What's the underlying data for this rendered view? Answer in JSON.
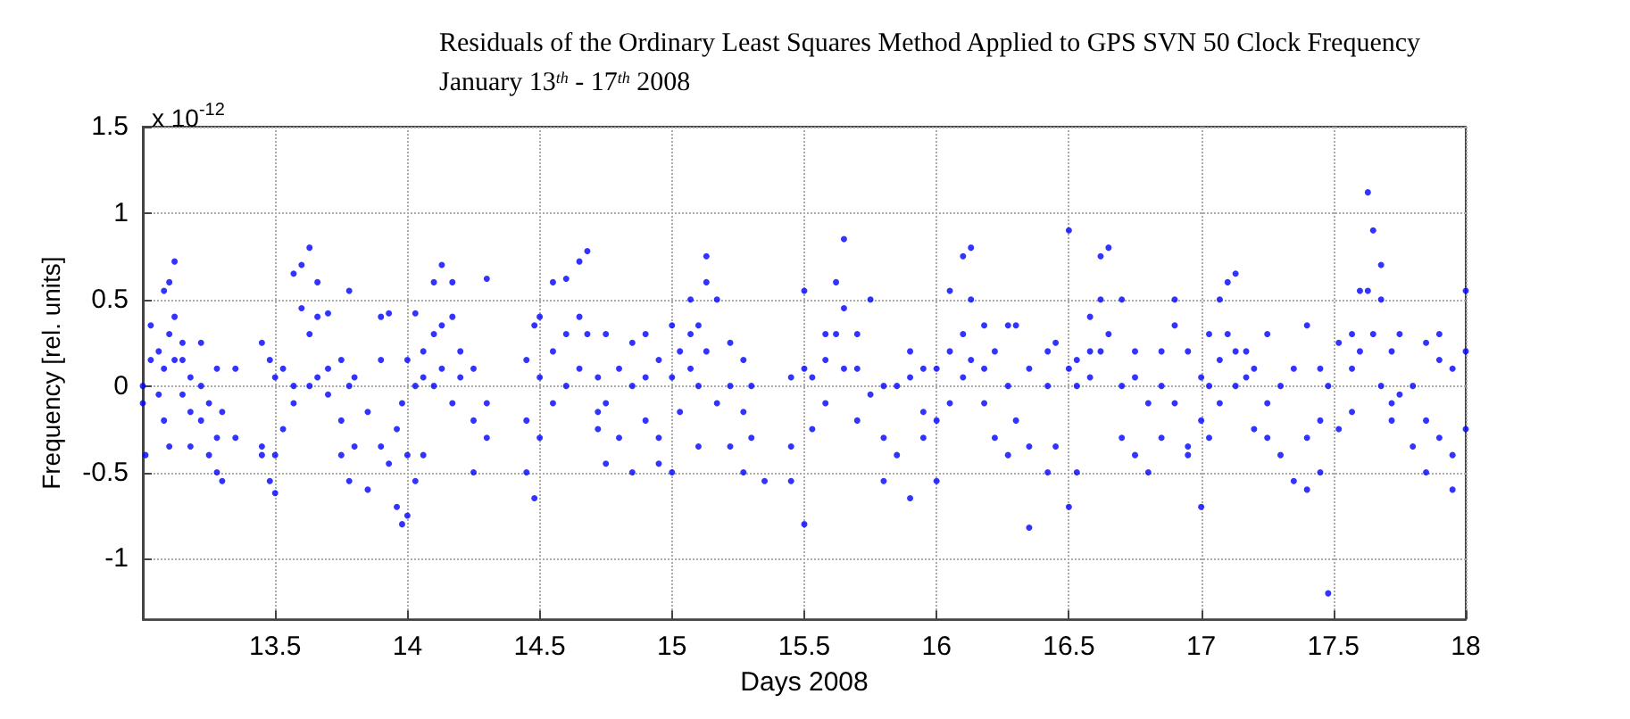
{
  "chart_data": {
    "type": "scatter",
    "title": "Residuals of the Ordinary Least Squares Method Applied to GPS SVN 50 Clock Frequency",
    "subtitle": "January 13$^{th}$ - 17$^{th}$ 2008",
    "xlabel": "Days 2008",
    "ylabel": "Frequency [rel. units]",
    "annotations": [
      "x 10$^{-12}$"
    ],
    "xlim": [
      13,
      18
    ],
    "xticks": [
      13.5,
      14,
      14.5,
      15,
      15.5,
      16,
      16.5,
      17,
      17.5,
      18
    ],
    "ylim": [
      -1.35,
      1.5
    ],
    "yticks": [
      -1,
      -0.5,
      0,
      0.5,
      1,
      1.5
    ],
    "grid": true,
    "marker": "circle",
    "series": [
      {
        "color": "#0000ff",
        "x": [
          13.0,
          13.0,
          13.01,
          13.03,
          13.03,
          13.06,
          13.06,
          13.08,
          13.08,
          13.08,
          13.1,
          13.1,
          13.1,
          13.12,
          13.12,
          13.12,
          13.15,
          13.15,
          13.15,
          13.18,
          13.18,
          13.18,
          13.22,
          13.22,
          13.22,
          13.25,
          13.25,
          13.28,
          13.28,
          13.28,
          13.3,
          13.3,
          13.35,
          13.35,
          13.45,
          13.45,
          13.45,
          13.48,
          13.48,
          13.5,
          13.5,
          13.5,
          13.53,
          13.53,
          13.57,
          13.57,
          13.57,
          13.6,
          13.6,
          13.63,
          13.63,
          13.63,
          13.66,
          13.66,
          13.66,
          13.7,
          13.7,
          13.7,
          13.75,
          13.75,
          13.75,
          13.78,
          13.78,
          13.78,
          13.8,
          13.8,
          13.85,
          13.85,
          13.9,
          13.9,
          13.9,
          13.93,
          13.93,
          13.96,
          13.96,
          13.98,
          13.98,
          14.0,
          14.0,
          14.0,
          14.03,
          14.03,
          14.03,
          14.06,
          14.06,
          14.06,
          14.1,
          14.1,
          14.1,
          14.13,
          14.13,
          14.13,
          14.17,
          14.17,
          14.17,
          14.2,
          14.2,
          14.25,
          14.25,
          14.25,
          14.3,
          14.3,
          14.3,
          14.45,
          14.45,
          14.45,
          14.48,
          14.48,
          14.5,
          14.5,
          14.5,
          14.55,
          14.55,
          14.55,
          14.6,
          14.6,
          14.6,
          14.65,
          14.65,
          14.65,
          14.68,
          14.68,
          14.72,
          14.72,
          14.72,
          14.75,
          14.75,
          14.75,
          14.8,
          14.8,
          14.85,
          14.85,
          14.85,
          14.9,
          14.9,
          14.9,
          14.95,
          14.95,
          14.95,
          15.0,
          15.0,
          15.0,
          15.03,
          15.03,
          15.07,
          15.07,
          15.07,
          15.1,
          15.1,
          15.1,
          15.13,
          15.13,
          15.13,
          15.17,
          15.17,
          15.22,
          15.22,
          15.22,
          15.27,
          15.27,
          15.27,
          15.3,
          15.3,
          15.35,
          15.45,
          15.45,
          15.45,
          15.5,
          15.5,
          15.5,
          15.53,
          15.53,
          15.58,
          15.58,
          15.58,
          15.62,
          15.62,
          15.65,
          15.65,
          15.65,
          15.7,
          15.7,
          15.7,
          15.75,
          15.75,
          15.8,
          15.8,
          15.8,
          15.85,
          15.85,
          15.9,
          15.9,
          15.9,
          15.95,
          15.95,
          15.95,
          16.0,
          16.0,
          16.0,
          16.05,
          16.05,
          16.05,
          16.1,
          16.1,
          16.1,
          16.13,
          16.13,
          16.13,
          16.18,
          16.18,
          16.18,
          16.22,
          16.22,
          16.27,
          16.27,
          16.27,
          16.3,
          16.3,
          16.35,
          16.35,
          16.35,
          16.42,
          16.42,
          16.42,
          16.45,
          16.45,
          16.5,
          16.5,
          16.5,
          16.53,
          16.53,
          16.53,
          16.58,
          16.58,
          16.58,
          16.62,
          16.62,
          16.62,
          16.65,
          16.65,
          16.7,
          16.7,
          16.7,
          16.75,
          16.75,
          16.75,
          16.8,
          16.8,
          16.85,
          16.85,
          16.85,
          16.9,
          16.9,
          16.9,
          16.95,
          16.95,
          16.95,
          17.0,
          17.0,
          17.0,
          17.03,
          17.03,
          17.03,
          17.07,
          17.07,
          17.07,
          17.1,
          17.1,
          17.13,
          17.13,
          17.13,
          17.17,
          17.17,
          17.2,
          17.2,
          17.25,
          17.25,
          17.25,
          17.3,
          17.3,
          17.35,
          17.35,
          17.4,
          17.4,
          17.4,
          17.45,
          17.45,
          17.45,
          17.48,
          17.48,
          17.52,
          17.52,
          17.57,
          17.57,
          17.57,
          17.6,
          17.6,
          17.63,
          17.63,
          17.65,
          17.65,
          17.68,
          17.68,
          17.68,
          17.72,
          17.72,
          17.72,
          17.75,
          17.75,
          17.8,
          17.8,
          17.85,
          17.85,
          17.85,
          17.9,
          17.9,
          17.9,
          17.95,
          17.95,
          17.95,
          18.0,
          18.0,
          18.0
        ],
        "values": [
          0.0,
          -0.1,
          -0.4,
          0.35,
          0.15,
          0.2,
          -0.05,
          0.55,
          0.1,
          -0.2,
          0.6,
          0.3,
          -0.35,
          0.72,
          0.4,
          0.15,
          0.15,
          -0.05,
          0.25,
          0.05,
          -0.15,
          -0.35,
          0.0,
          -0.2,
          0.25,
          -0.1,
          -0.4,
          0.1,
          -0.5,
          -0.3,
          -0.15,
          -0.55,
          0.1,
          -0.3,
          -0.4,
          -0.35,
          0.25,
          -0.55,
          0.15,
          -0.62,
          0.05,
          -0.4,
          0.1,
          -0.25,
          0.65,
          0.0,
          -0.1,
          0.7,
          0.45,
          0.8,
          0.3,
          0.0,
          0.6,
          0.4,
          0.05,
          0.42,
          0.1,
          -0.05,
          0.15,
          -0.4,
          -0.2,
          0.55,
          0.0,
          -0.55,
          0.05,
          -0.35,
          -0.15,
          -0.6,
          0.4,
          -0.35,
          0.15,
          0.42,
          -0.45,
          -0.25,
          -0.7,
          -0.8,
          -0.1,
          0.15,
          -0.4,
          -0.75,
          0.42,
          0.0,
          -0.55,
          0.2,
          0.05,
          -0.4,
          0.6,
          0.3,
          0.0,
          0.7,
          0.35,
          0.1,
          0.6,
          0.4,
          -0.1,
          0.2,
          0.05,
          0.1,
          -0.2,
          -0.5,
          0.62,
          -0.1,
          -0.3,
          0.15,
          -0.2,
          -0.5,
          -0.65,
          0.35,
          0.4,
          -0.3,
          0.05,
          0.2,
          -0.1,
          0.6,
          0.62,
          0.3,
          0.0,
          0.72,
          0.4,
          0.1,
          0.78,
          0.3,
          -0.15,
          0.05,
          -0.25,
          -0.45,
          0.3,
          -0.1,
          0.1,
          -0.3,
          0.0,
          -0.5,
          0.25,
          0.3,
          -0.2,
          0.05,
          -0.3,
          0.15,
          -0.45,
          0.35,
          0.05,
          -0.5,
          0.2,
          -0.15,
          0.5,
          0.3,
          0.1,
          0.35,
          0.0,
          -0.35,
          0.75,
          0.2,
          0.6,
          0.5,
          -0.1,
          0.25,
          0.0,
          -0.35,
          0.15,
          -0.15,
          -0.5,
          0.0,
          -0.3,
          -0.55,
          -0.35,
          0.05,
          -0.55,
          0.55,
          0.1,
          -0.8,
          0.05,
          -0.25,
          0.15,
          0.3,
          -0.1,
          0.6,
          0.3,
          0.85,
          0.45,
          0.1,
          0.3,
          -0.2,
          0.1,
          0.5,
          -0.05,
          0.0,
          -0.55,
          -0.3,
          0.0,
          -0.4,
          0.2,
          -0.65,
          0.05,
          0.1,
          -0.15,
          -0.3,
          0.1,
          -0.55,
          -0.2,
          0.2,
          0.55,
          -0.1,
          0.75,
          0.3,
          0.05,
          0.8,
          0.5,
          0.15,
          0.35,
          0.1,
          -0.1,
          0.2,
          -0.3,
          0.35,
          0.0,
          -0.4,
          0.35,
          -0.2,
          -0.82,
          0.1,
          -0.35,
          0.2,
          -0.5,
          0.0,
          0.25,
          -0.35,
          0.9,
          0.1,
          -0.7,
          0.0,
          -0.5,
          0.15,
          0.4,
          0.2,
          0.05,
          0.75,
          0.5,
          0.2,
          0.8,
          0.3,
          0.5,
          0.0,
          -0.3,
          0.2,
          -0.4,
          0.05,
          -0.1,
          -0.5,
          0.0,
          0.2,
          -0.3,
          0.5,
          0.35,
          -0.1,
          0.2,
          -0.35,
          -0.4,
          -0.7,
          0.05,
          -0.2,
          0.3,
          0.0,
          -0.3,
          0.5,
          0.15,
          -0.1,
          0.6,
          0.3,
          0.65,
          0.2,
          0.0,
          0.2,
          0.05,
          0.1,
          -0.25,
          0.3,
          -0.1,
          -0.3,
          0.0,
          -0.4,
          0.1,
          -0.55,
          0.35,
          -0.3,
          -0.6,
          0.1,
          -0.2,
          -0.5,
          -1.2,
          0.0,
          0.25,
          -0.25,
          0.3,
          0.1,
          -0.15,
          0.55,
          0.2,
          1.12,
          0.55,
          0.9,
          0.3,
          0.7,
          0.5,
          0.0,
          0.2,
          -0.2,
          -0.1,
          0.3,
          -0.05,
          0.0,
          -0.35,
          0.25,
          -0.5,
          -0.2,
          0.15,
          -0.3,
          0.3,
          -0.6,
          0.1,
          -0.4,
          0.55,
          0.2,
          -0.25
        ]
      }
    ]
  }
}
